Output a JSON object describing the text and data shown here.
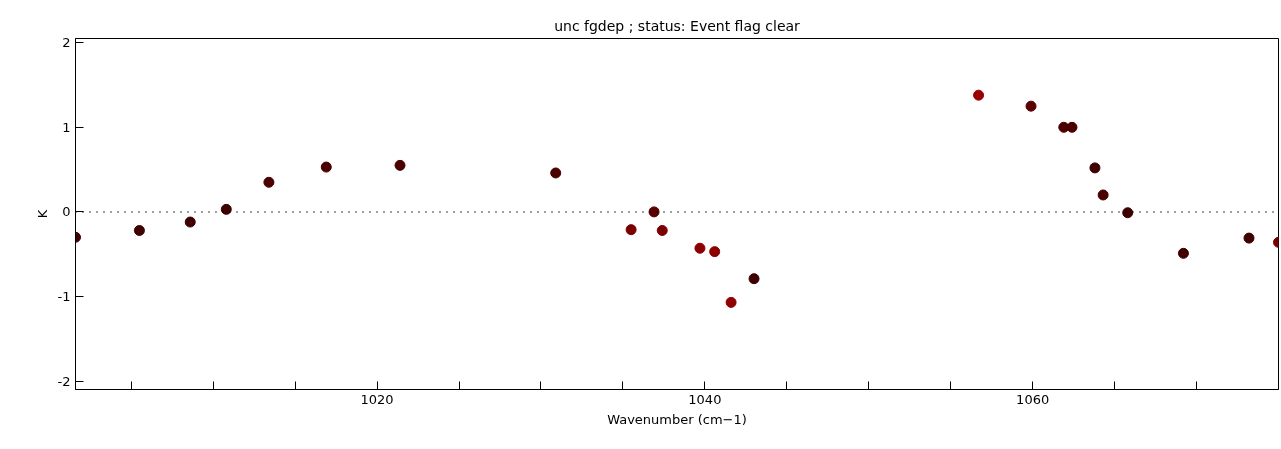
{
  "chart_data": {
    "type": "scatter",
    "title": "unc fgdep ; status: Event flag clear",
    "xlabel": "Wavenumber (cm−1)",
    "ylabel": "K",
    "x": [
      1001.6,
      1005.5,
      1008.6,
      1010.8,
      1013.4,
      1016.9,
      1021.4,
      1030.9,
      1035.5,
      1036.9,
      1037.4,
      1039.7,
      1040.6,
      1041.6,
      1043.0,
      1056.7,
      1059.9,
      1061.9,
      1062.4,
      1063.8,
      1064.3,
      1065.8,
      1069.2,
      1073.2,
      1075.0
    ],
    "values": [
      -0.3,
      -0.22,
      -0.12,
      0.03,
      0.35,
      0.53,
      0.55,
      0.46,
      -0.21,
      0.0,
      -0.22,
      -0.43,
      -0.47,
      -1.07,
      -0.79,
      1.38,
      1.25,
      1.0,
      1.0,
      0.52,
      0.2,
      -0.01,
      -0.49,
      -0.31,
      -0.36
    ],
    "colors": [
      "#3f0000",
      "#3f0000",
      "#3f0000",
      "#3f0000",
      "#4a0000",
      "#4a0000",
      "#4a0000",
      "#4a0000",
      "#7a0000",
      "#5a0000",
      "#7a0000",
      "#8b0000",
      "#8b0000",
      "#900000",
      "#3f0000",
      "#9a0000",
      "#5a0000",
      "#4a0000",
      "#4a0000",
      "#3f0000",
      "#4a0000",
      "#3f0000",
      "#3f0000",
      "#3f0000",
      "#7a0000"
    ],
    "xlim": [
      1001.6,
      1075.0
    ],
    "ylim": [
      -2.1,
      2.05
    ],
    "xticks": [
      {
        "value": 1005,
        "label": null
      },
      {
        "value": 1010,
        "label": null
      },
      {
        "value": 1015,
        "label": null
      },
      1020,
      {
        "value": 1025,
        "label": null
      },
      {
        "value": 1030,
        "label": null
      },
      {
        "value": 1035,
        "label": null
      },
      1040,
      {
        "value": 1045,
        "label": null
      },
      {
        "value": 1050,
        "label": null
      },
      {
        "value": 1055,
        "label": null
      },
      1060,
      {
        "value": 1065,
        "label": null
      },
      {
        "value": 1070,
        "label": null
      }
    ],
    "yticks": [
      -2,
      -1,
      0,
      1,
      2
    ],
    "ref_lines": [
      {
        "axis": "y",
        "value": 0,
        "label": null,
        "color": "#000000",
        "line_style": "dotted"
      }
    ],
    "marker": "circle",
    "grid": false
  }
}
